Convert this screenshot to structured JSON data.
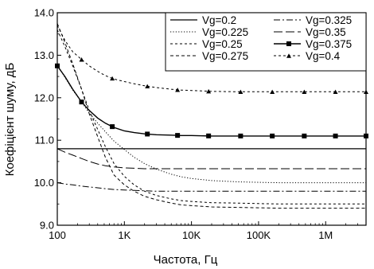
{
  "chart_data": {
    "type": "line",
    "title": "",
    "xlabel": "Частота, Гц",
    "ylabel": "Коефіцієнт шуму, дБ",
    "xscale": "log",
    "xlim": [
      100,
      4000000
    ],
    "ylim": [
      9.0,
      14.0
    ],
    "grid": false,
    "legend_position": "top-right",
    "x_ticks": [
      {
        "value": 100,
        "label": "100"
      },
      {
        "value": 1000,
        "label": "1K"
      },
      {
        "value": 10000,
        "label": "10K"
      },
      {
        "value": 100000,
        "label": "100K"
      },
      {
        "value": 1000000,
        "label": "1M"
      }
    ],
    "y_ticks": [
      {
        "value": 9.0,
        "label": "9.0"
      },
      {
        "value": 10.0,
        "label": "10.0"
      },
      {
        "value": 11.0,
        "label": "11.0"
      },
      {
        "value": 12.0,
        "label": "12.0"
      },
      {
        "value": 13.0,
        "label": "13.0"
      },
      {
        "value": 14.0,
        "label": "14.0"
      }
    ],
    "x": [
      100,
      130,
      170,
      230,
      300,
      400,
      520,
      700,
      1000,
      1400,
      2000,
      3000,
      5000,
      7000,
      10000,
      20000,
      50000,
      100000,
      200000,
      500000,
      1000000,
      2000000,
      4000000
    ],
    "series": [
      {
        "name": "Vg=0.2",
        "style": "solid",
        "marker": "none",
        "values": [
          10.8,
          10.8,
          10.8,
          10.8,
          10.8,
          10.8,
          10.8,
          10.8,
          10.8,
          10.8,
          10.8,
          10.8,
          10.8,
          10.8,
          10.8,
          10.8,
          10.8,
          10.8,
          10.8,
          10.8,
          10.8,
          10.8,
          10.8
        ]
      },
      {
        "name": "Vg=0.225",
        "style": "dotted",
        "marker": "none",
        "values": [
          12.78,
          12.48,
          12.18,
          11.9,
          11.64,
          11.4,
          11.2,
          10.98,
          10.78,
          10.6,
          10.45,
          10.32,
          10.2,
          10.14,
          10.1,
          10.05,
          10.02,
          10.01,
          10.0,
          10.0,
          10.0,
          10.0,
          10.0
        ]
      },
      {
        "name": "Vg=0.25",
        "style": "short-dash",
        "marker": "none",
        "values": [
          13.6,
          13.2,
          12.75,
          12.2,
          11.7,
          11.25,
          10.85,
          10.45,
          10.15,
          9.95,
          9.8,
          9.7,
          9.62,
          9.58,
          9.56,
          9.53,
          9.52,
          9.51,
          9.5,
          9.5,
          9.5,
          9.5,
          9.5
        ]
      },
      {
        "name": "Vg=0.275",
        "style": "dashed",
        "marker": "none",
        "values": [
          13.75,
          13.3,
          12.8,
          12.2,
          11.62,
          11.08,
          10.6,
          10.18,
          9.95,
          9.8,
          9.68,
          9.6,
          9.52,
          9.48,
          9.46,
          9.43,
          9.42,
          9.41,
          9.4,
          9.4,
          9.4,
          9.4,
          9.4
        ]
      },
      {
        "name": "Vg=0.325",
        "style": "dash-dot",
        "marker": "none",
        "values": [
          10.0,
          9.97,
          9.95,
          9.92,
          9.9,
          9.88,
          9.86,
          9.84,
          9.83,
          9.82,
          9.81,
          9.8,
          9.8,
          9.8,
          9.8,
          9.8,
          9.8,
          9.8,
          9.8,
          9.8,
          9.8,
          9.8,
          9.8
        ]
      },
      {
        "name": "Vg=0.35",
        "style": "long-dash",
        "marker": "none",
        "values": [
          10.8,
          10.72,
          10.65,
          10.57,
          10.5,
          10.44,
          10.4,
          10.37,
          10.35,
          10.34,
          10.33,
          10.33,
          10.33,
          10.33,
          10.33,
          10.33,
          10.33,
          10.33,
          10.33,
          10.33,
          10.33,
          10.33,
          10.33
        ]
      },
      {
        "name": "Vg=0.375",
        "style": "solid",
        "marker": "square",
        "values": [
          12.75,
          12.5,
          12.2,
          11.9,
          11.7,
          11.52,
          11.4,
          11.3,
          11.22,
          11.18,
          11.15,
          11.13,
          11.12,
          11.11,
          11.11,
          11.1,
          11.1,
          11.1,
          11.1,
          11.1,
          11.1,
          11.1,
          11.1
        ]
      },
      {
        "name": "Vg=0.4",
        "style": "short-dash",
        "marker": "triangle",
        "values": [
          13.7,
          13.35,
          13.08,
          12.9,
          12.75,
          12.62,
          12.52,
          12.44,
          12.38,
          12.33,
          12.28,
          12.24,
          12.2,
          12.18,
          12.17,
          12.15,
          12.14,
          12.14,
          12.14,
          12.14,
          12.14,
          12.14,
          12.14
        ]
      }
    ],
    "marker_x": {
      "square": [
        100,
        230,
        660,
        2200,
        6200,
        18000,
        54000,
        160000,
        480000,
        1400000,
        4000000
      ],
      "triangle": [
        230,
        660,
        2200,
        6200,
        18000,
        54000,
        160000,
        480000,
        1400000,
        4000000
      ]
    }
  }
}
